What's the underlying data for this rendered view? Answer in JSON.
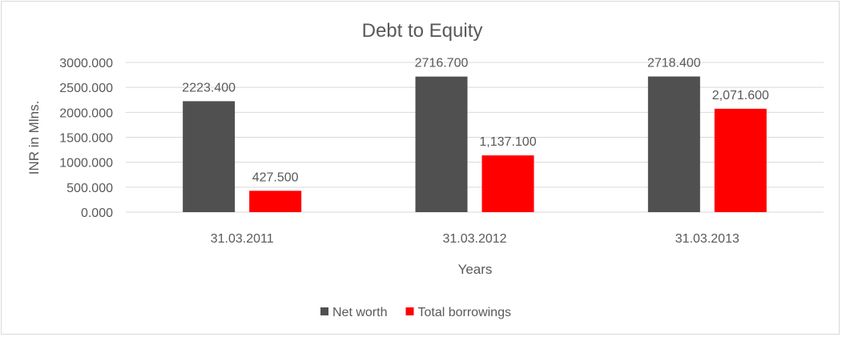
{
  "chart_data": {
    "type": "bar",
    "title": "Debt to Equity",
    "xlabel": "Years",
    "ylabel": "INR in Mlns.",
    "categories": [
      "31.03.2011",
      "31.03.2012",
      "31.03.2013"
    ],
    "series": [
      {
        "name": "Net worth",
        "values": [
          2223.4,
          2716.7,
          2718.4
        ],
        "labels": [
          "2223.400",
          "2716.700",
          "2718.400"
        ],
        "color": "#505050"
      },
      {
        "name": "Total borrowings",
        "values": [
          427.5,
          1137.1,
          2071.6
        ],
        "labels": [
          "427.500",
          "1,137.100",
          "2,071.600"
        ],
        "color": "#ff0000"
      }
    ],
    "ylim": [
      0,
      3000
    ],
    "yticks": [
      "0.000",
      "500.000",
      "1000.000",
      "1500.000",
      "2000.000",
      "2500.000",
      "3000.000"
    ],
    "grid": true,
    "legend": "bottom"
  }
}
